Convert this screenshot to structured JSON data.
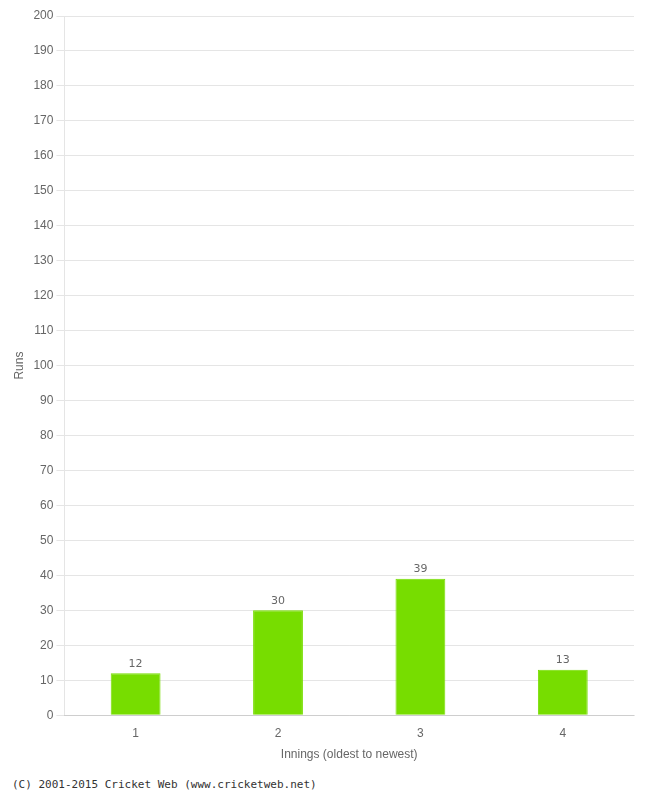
{
  "chart_data": {
    "type": "bar",
    "categories": [
      "1",
      "2",
      "3",
      "4"
    ],
    "values": [
      12,
      30,
      39,
      13
    ],
    "color": "#77dd00",
    "xlabel": "Innings (oldest to newest)",
    "ylabel": "Runs",
    "ylim": [
      0,
      200
    ],
    "yticks": [
      0,
      10,
      20,
      30,
      40,
      50,
      60,
      70,
      80,
      90,
      100,
      110,
      120,
      130,
      140,
      150,
      160,
      170,
      180,
      190,
      200
    ],
    "grid": true,
    "data_labels": true,
    "footer": "(C) 2001-2015 Cricket Web (www.cricketweb.net)"
  }
}
